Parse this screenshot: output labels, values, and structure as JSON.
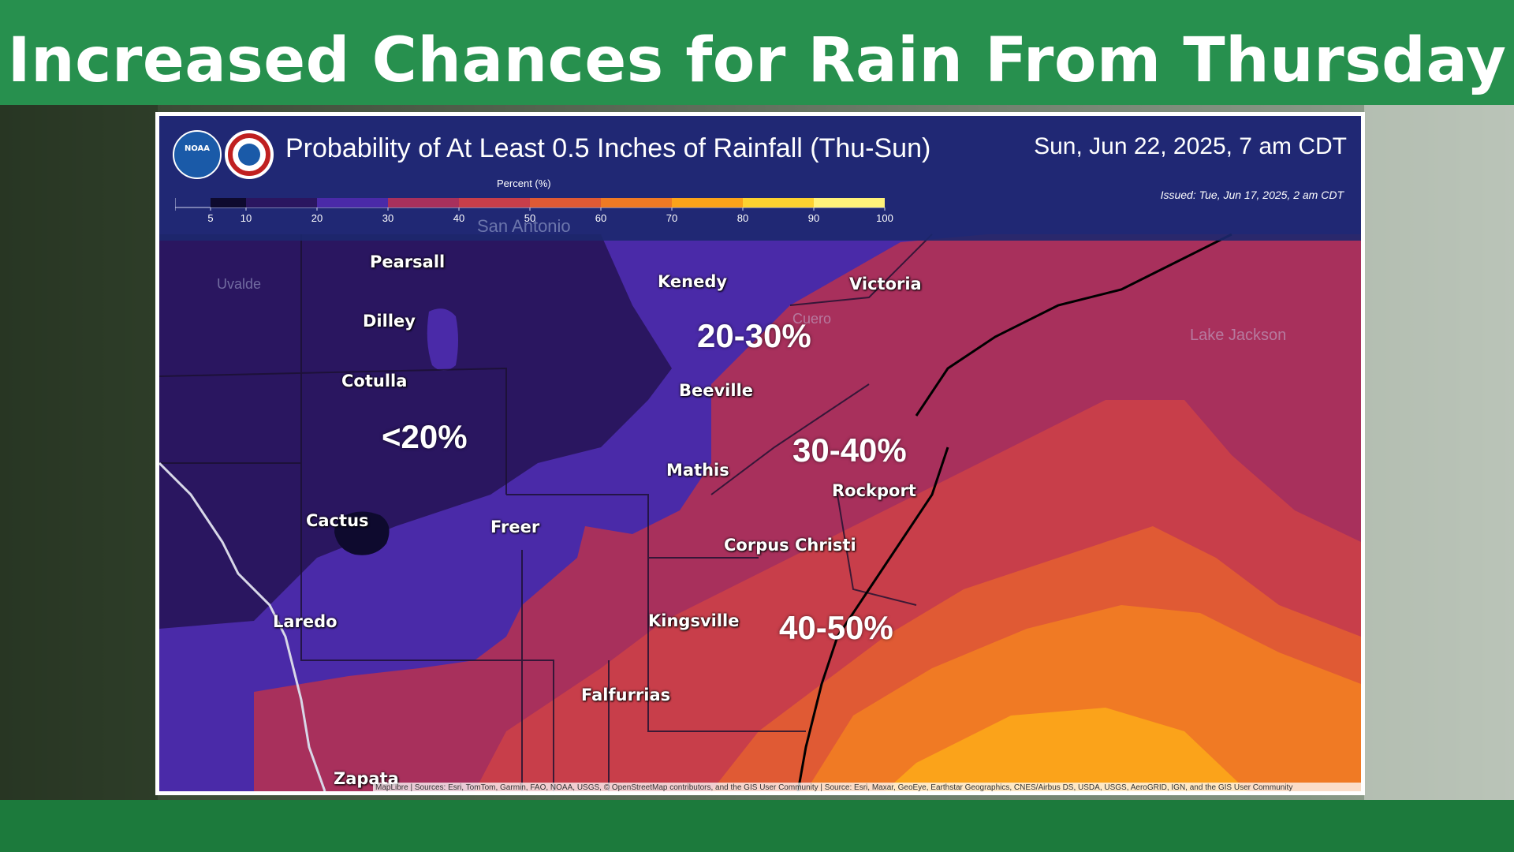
{
  "slide": {
    "title": "Increased Chances for Rain From Thursday"
  },
  "map": {
    "heading": "Probability of At Least 0.5 Inches of Rainfall (Thu-Sun)",
    "valid_time": "Sun, Jun 22, 2025, 7 am CDT",
    "issued": "Issued: Tue, Jun 17, 2025, 2 am CDT",
    "legend": {
      "title": "Percent (%)",
      "ticks": [
        "5",
        "10",
        "20",
        "30",
        "40",
        "50",
        "60",
        "70",
        "80",
        "90",
        "100"
      ],
      "bins": [
        {
          "from": 5,
          "to": 10,
          "color": "#0e0a2e"
        },
        {
          "from": 10,
          "to": 20,
          "color": "#2a1660"
        },
        {
          "from": 20,
          "to": 30,
          "color": "#4a2aa8"
        },
        {
          "from": 30,
          "to": 40,
          "color": "#a8305c"
        },
        {
          "from": 40,
          "to": 50,
          "color": "#c83e4a"
        },
        {
          "from": 50,
          "to": 60,
          "color": "#e05a34"
        },
        {
          "from": 60,
          "to": 70,
          "color": "#f07a24"
        },
        {
          "from": 70,
          "to": 80,
          "color": "#fba31a"
        },
        {
          "from": 80,
          "to": 90,
          "color": "#fdd230"
        },
        {
          "from": 90,
          "to": 100,
          "color": "#fff27a"
        }
      ]
    },
    "cities": [
      "Pearsall",
      "Dilley",
      "Cotulla",
      "Kenedy",
      "Victoria",
      "Beeville",
      "Mathis",
      "Rockport",
      "Cactus",
      "Freer",
      "Corpus Christi",
      "Laredo",
      "Kingsville",
      "Falfurrias",
      "Zapata"
    ],
    "background_labels": [
      "San Antonio",
      "Uvalde",
      "Cuero",
      "Lake Jackson"
    ],
    "ranges": [
      "<20%",
      "20-30%",
      "30-40%",
      "40-50%"
    ],
    "attribution": "MapLibre | Sources: Esri, TomTom, Garmin, FAO, NOAA, USGS, © OpenStreetMap contributors, and the GIS User Community | Source: Esri, Maxar, GeoEye, Earthstar Geographics, CNES/Airbus DS, USDA, USGS, AeroGRID, IGN, and the GIS User Community"
  }
}
